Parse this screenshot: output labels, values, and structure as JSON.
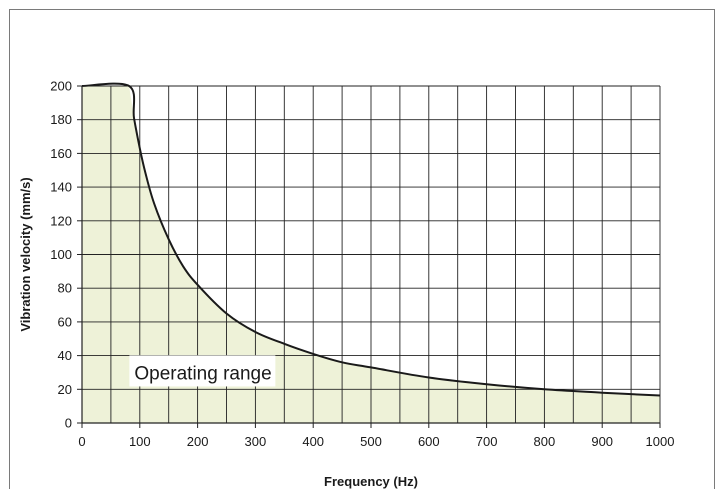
{
  "chart_data": {
    "type": "area",
    "title": "",
    "xlabel": "Frequency (Hz)",
    "ylabel": "Vibration velocity (mm/s)",
    "xlim": [
      0,
      1000
    ],
    "ylim": [
      0,
      200
    ],
    "x_ticks": [
      "0",
      "100",
      "200",
      "300",
      "400",
      "500",
      "600",
      "700",
      "800",
      "900",
      "1000"
    ],
    "y_ticks": [
      "0",
      "20",
      "40",
      "60",
      "80",
      "100",
      "120",
      "140",
      "160",
      "180",
      "200"
    ],
    "grid": true,
    "fill_color": "#eef2d8",
    "line_color": "#1a1a1a",
    "series": [
      {
        "x": [
          0,
          81.5,
          90,
          100,
          110,
          125,
          150,
          175,
          200,
          250,
          300,
          350,
          400,
          450,
          500,
          600,
          700,
          800,
          900,
          1000
        ],
        "values": [
          200,
          200,
          181,
          163,
          148,
          130,
          109,
          93,
          82,
          65,
          54,
          47,
          41,
          36,
          33,
          27,
          23,
          20,
          18,
          16.3
        ]
      }
    ],
    "annotations": [
      {
        "text": "Operating range",
        "x": 165,
        "y": 30
      }
    ]
  }
}
